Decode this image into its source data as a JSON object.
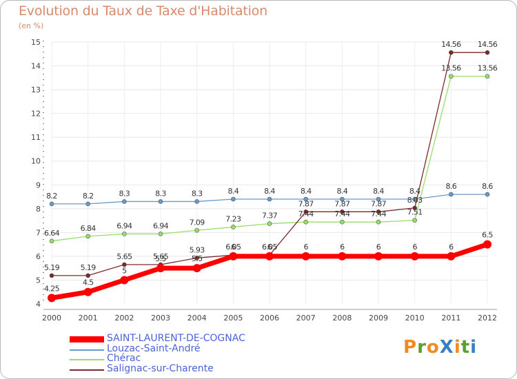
{
  "chart_data": {
    "type": "line",
    "title": "Evolution du Taux de Taxe d'Habitation",
    "subtitle": "(en %)",
    "xlabel": "",
    "ylabel": "(en %)",
    "x": [
      "2000",
      "2001",
      "2002",
      "2003",
      "2004",
      "2005",
      "2006",
      "2007",
      "2008",
      "2009",
      "2010",
      "2011",
      "2012"
    ],
    "ylim": [
      4,
      15
    ],
    "yticks": [
      4,
      5,
      6,
      7,
      8,
      9,
      10,
      11,
      12,
      13,
      14,
      15
    ],
    "ytick_labels": [
      "4",
      "5",
      "6",
      "7",
      "8",
      "9",
      "10",
      "11",
      "12",
      "13",
      "14",
      "15"
    ],
    "series": [
      {
        "name": "SAINT-LAURENT-DE-COGNAC",
        "color": "#ff0000",
        "emphasis": true,
        "values": [
          4.25,
          4.5,
          5,
          5.5,
          5.5,
          6,
          6,
          6,
          6,
          6,
          6,
          6,
          6.5
        ],
        "labels": [
          "4.25",
          "4.5",
          "5",
          "5.5",
          "5.5",
          "6",
          "6",
          "6",
          "6",
          "6",
          "6",
          "6",
          "6.5"
        ]
      },
      {
        "name": "Louzac-Saint-André",
        "color": "#6699cc",
        "emphasis": false,
        "values": [
          8.2,
          8.2,
          8.3,
          8.3,
          8.3,
          8.4,
          8.4,
          8.4,
          8.4,
          8.4,
          8.4,
          8.6,
          8.6
        ],
        "labels": [
          "8.2",
          "8.2",
          "8.3",
          "8.3",
          "8.3",
          "8.4",
          "8.4",
          "8.4",
          "8.4",
          "8.4",
          "8.4",
          "8.6",
          "8.6"
        ]
      },
      {
        "name": "Chérac",
        "color": "#99dd66",
        "emphasis": false,
        "values": [
          6.64,
          6.84,
          6.94,
          6.94,
          7.09,
          7.23,
          7.37,
          7.44,
          7.44,
          7.44,
          7.51,
          13.56,
          13.56
        ],
        "labels": [
          "6.64",
          "6.84",
          "6.94",
          "6.94",
          "7.09",
          "7.23",
          "7.37",
          "7.44",
          "7.44",
          "7.44",
          "7.51",
          "13.56",
          "13.56"
        ]
      },
      {
        "name": "Salignac-sur-Charente",
        "color": "#7a2a2a",
        "emphasis": false,
        "values": [
          5.19,
          5.19,
          5.65,
          5.65,
          5.93,
          6.05,
          6.05,
          7.87,
          7.87,
          7.87,
          8.03,
          14.56,
          14.56
        ],
        "labels": [
          "5.19",
          "5.19",
          "5.65",
          "5.65",
          "5.93",
          "6.05",
          "6.05",
          "7.87",
          "7.87",
          "7.87",
          "8.03",
          "14.56",
          "14.56"
        ]
      }
    ],
    "grid": true,
    "legend_position": "bottom-left"
  },
  "brand": {
    "text": "ProXiti",
    "colors": [
      "#f08a24",
      "#5aa02c",
      "#f08a24",
      "#3a7fc1",
      "#f08a24",
      "#5aa02c",
      "#3a7fc1"
    ]
  }
}
